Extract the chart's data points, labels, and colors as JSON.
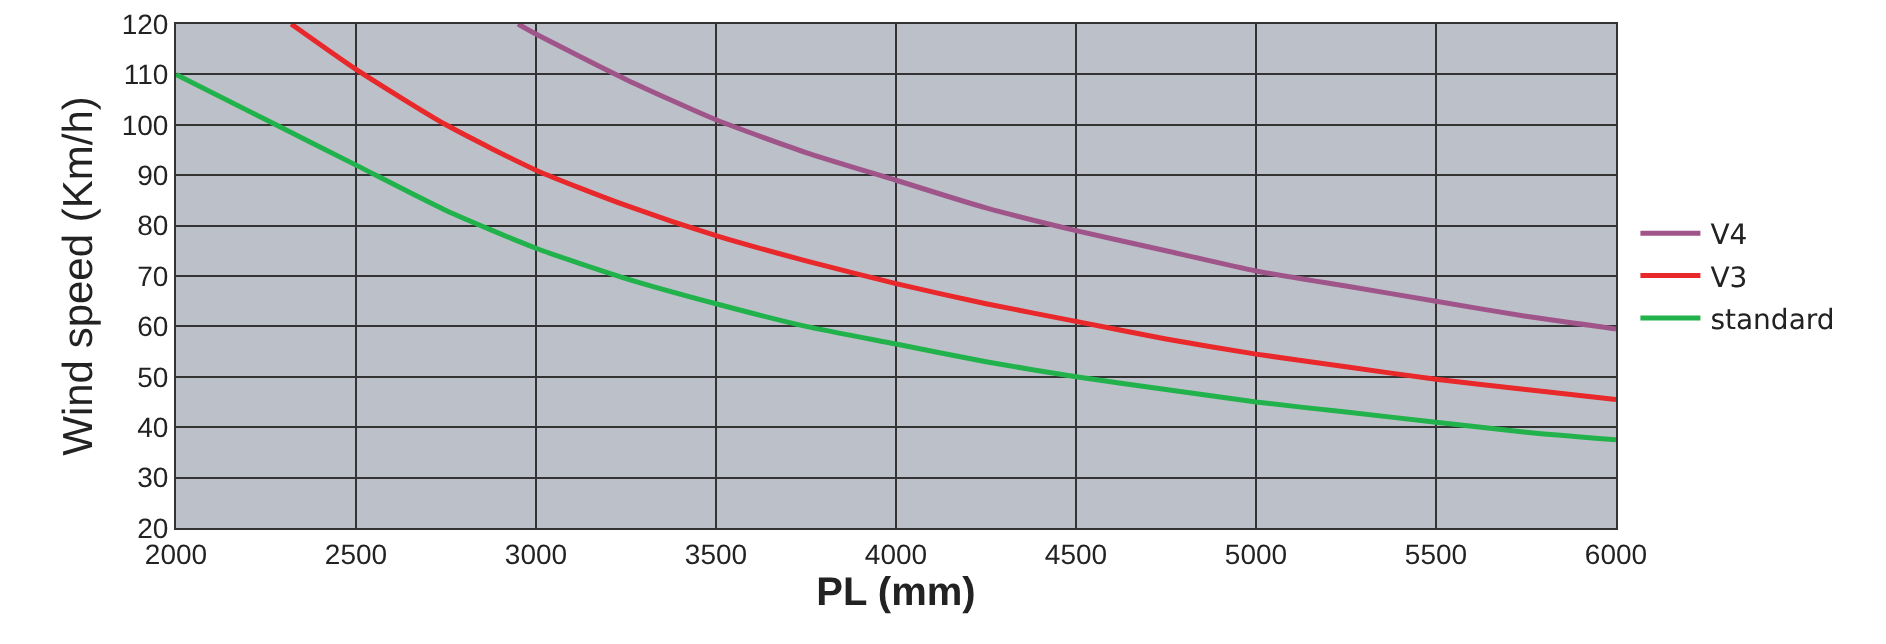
{
  "chart_data": {
    "type": "line",
    "xlabel": "PL (mm)",
    "ylabel": "Wind speed (Km/h)",
    "xlim": [
      2000,
      6000
    ],
    "ylim": [
      20,
      120
    ],
    "xticks": [
      2000,
      2500,
      3000,
      3500,
      4000,
      4500,
      5000,
      5500,
      6000
    ],
    "yticks": [
      20,
      30,
      40,
      50,
      60,
      70,
      80,
      90,
      100,
      110,
      120
    ],
    "grid": true,
    "legend": "right",
    "marker": "none",
    "line_style": "solid",
    "series": [
      {
        "name": "V4",
        "color": "#a0558a",
        "x": [
          2950,
          3000,
          3250,
          3500,
          3750,
          4000,
          4250,
          4500,
          4750,
          5000,
          5250,
          5500,
          5750,
          6000
        ],
        "values": [
          120,
          118,
          109,
          101,
          94.5,
          89,
          83.5,
          79,
          75,
          71,
          68,
          65,
          62,
          59.5
        ]
      },
      {
        "name": "V3",
        "color": "#e8282a",
        "x": [
          2320,
          2500,
          2750,
          3000,
          3250,
          3500,
          3750,
          4000,
          4250,
          4500,
          4750,
          5000,
          5250,
          5500,
          5750,
          6000
        ],
        "values": [
          120,
          111,
          100,
          91,
          84,
          78,
          73,
          68.5,
          64.5,
          61,
          57.5,
          54.5,
          52,
          49.5,
          47.5,
          45.5
        ]
      },
      {
        "name": "standard",
        "color": "#22b24c",
        "x": [
          2000,
          2250,
          2500,
          2750,
          3000,
          3250,
          3500,
          3750,
          4000,
          4250,
          4500,
          4750,
          5000,
          5250,
          5500,
          5750,
          6000
        ],
        "values": [
          110,
          101,
          92,
          83,
          75.5,
          69.5,
          64.5,
          60,
          56.5,
          53,
          50,
          47.5,
          45,
          43,
          41,
          39,
          37.5
        ]
      }
    ]
  }
}
